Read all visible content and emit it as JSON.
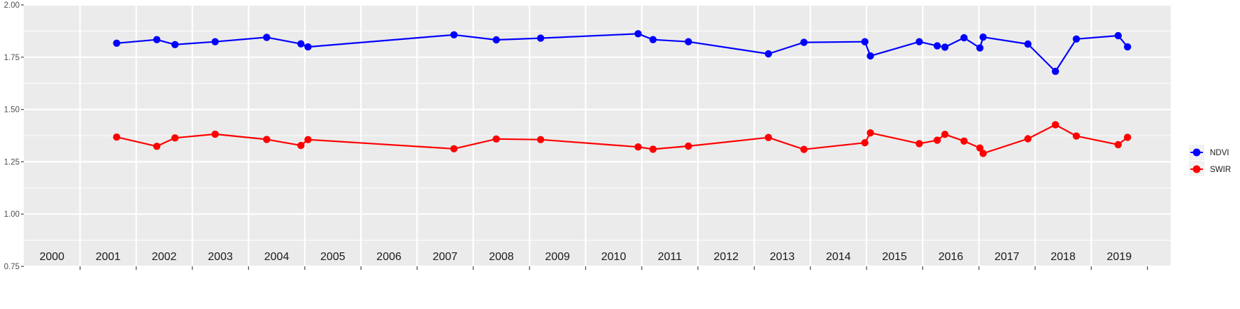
{
  "chart_data": {
    "type": "line",
    "title": "",
    "xlabel": "",
    "ylabel": "",
    "ylim": [
      0.75,
      2.0
    ],
    "xlim": [
      "2000-01-01",
      "2020-06-01"
    ],
    "y_ticks": [
      "0.75",
      "1.00",
      "1.25",
      "1.50",
      "1.75",
      "2.00"
    ],
    "year_labels": [
      "2000",
      "2001",
      "2002",
      "2003",
      "2004",
      "2005",
      "2006",
      "2007",
      "2008",
      "2009",
      "2010",
      "2011",
      "2012",
      "2013",
      "2014",
      "2015",
      "2016",
      "2017",
      "2018",
      "2019"
    ],
    "x": [
      "2001-08-27",
      "2002-05-15",
      "2002-09-10",
      "2003-05-29",
      "2004-04-28",
      "2004-12-07",
      "2005-01-22",
      "2007-08-29",
      "2008-05-30",
      "2009-03-14",
      "2010-12-08",
      "2011-03-15",
      "2011-10-31",
      "2013-04-03",
      "2013-11-20",
      "2014-12-21",
      "2015-01-26",
      "2015-12-10",
      "2016-04-05",
      "2016-05-25",
      "2016-09-26",
      "2017-01-07",
      "2017-01-28",
      "2017-11-15",
      "2018-05-13",
      "2018-09-26",
      "2019-06-25",
      "2019-08-25"
    ],
    "series": [
      {
        "name": "NDVI",
        "color": "#0000ff",
        "values": [
          1.817,
          1.834,
          1.81,
          1.824,
          1.845,
          1.814,
          1.799,
          1.857,
          1.833,
          1.841,
          1.862,
          1.834,
          1.824,
          1.766,
          1.821,
          1.824,
          1.756,
          1.824,
          1.804,
          1.798,
          1.843,
          1.794,
          1.846,
          1.813,
          1.682,
          1.837,
          1.853,
          1.799
        ]
      },
      {
        "name": "SWIR",
        "color": "#ff0000",
        "values": [
          1.368,
          1.324,
          1.364,
          1.382,
          1.357,
          1.328,
          1.356,
          1.312,
          1.359,
          1.356,
          1.321,
          1.31,
          1.325,
          1.366,
          1.309,
          1.341,
          1.388,
          1.337,
          1.353,
          1.381,
          1.349,
          1.316,
          1.29,
          1.36,
          1.427,
          1.373,
          1.332,
          1.367
        ]
      }
    ],
    "grid": true,
    "legend_position": "right"
  }
}
